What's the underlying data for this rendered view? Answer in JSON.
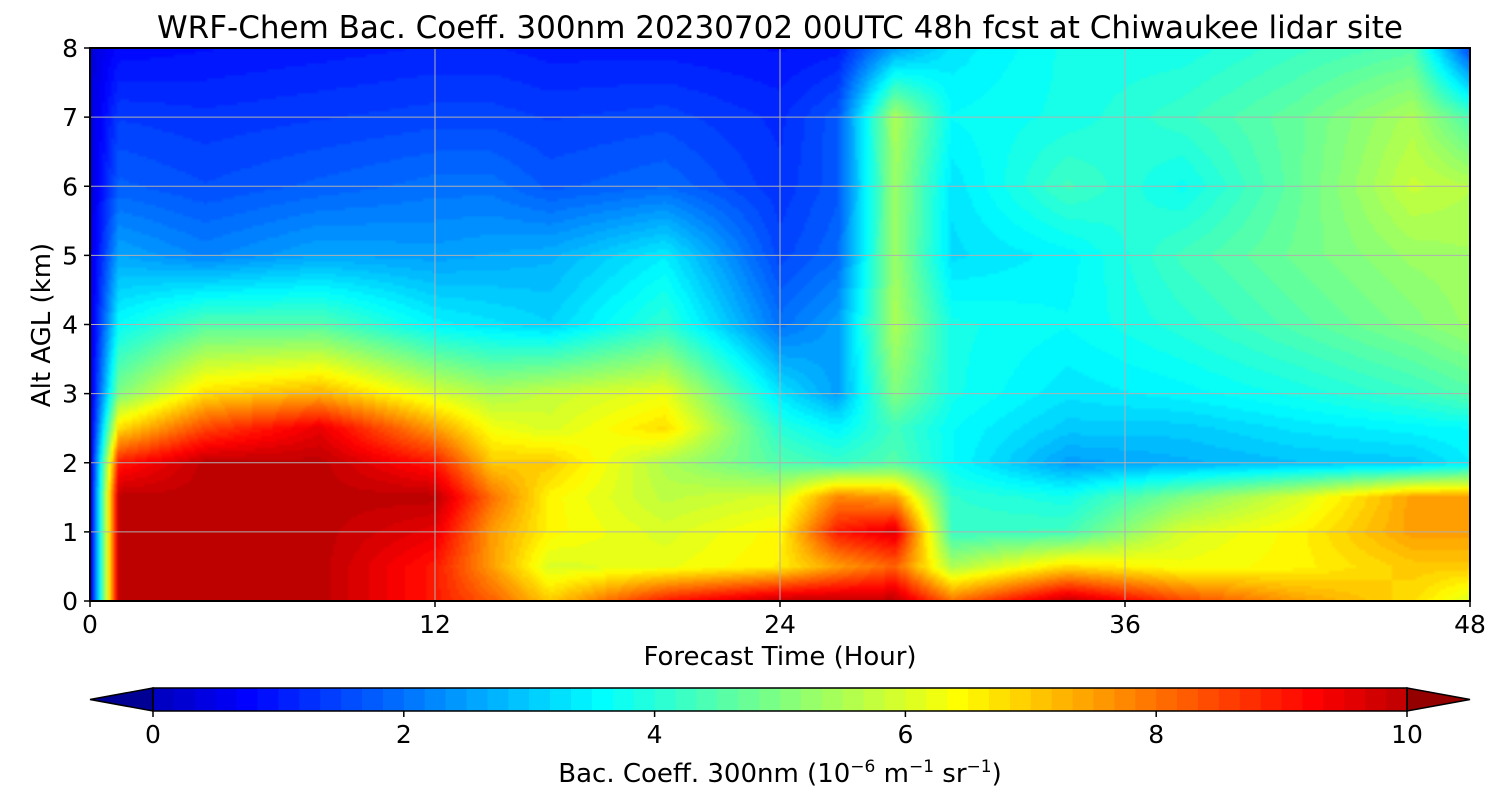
{
  "chart_data": {
    "type": "heatmap",
    "title": "WRF-Chem Bac. Coeff. 300nm  20230702 00UTC 48h fcst at Chiwaukee lidar site",
    "xlabel": "Forecast Time (Hour)",
    "ylabel": "Alt AGL (km)",
    "xlim": [
      0,
      48
    ],
    "ylim": [
      0,
      8
    ],
    "x_ticks": [
      0,
      12,
      24,
      36,
      48
    ],
    "y_ticks": [
      0,
      1,
      2,
      3,
      4,
      5,
      6,
      7,
      8
    ],
    "grid": true,
    "colormap": "jet",
    "colorbar": {
      "orientation": "horizontal",
      "placement": "bottom",
      "range": [
        0,
        10
      ],
      "ticks": [
        0,
        2,
        4,
        6,
        8,
        10
      ],
      "label": "Bac. Coeff. 300nm  (10",
      "label_exp1": "−6",
      "label_mid": " m",
      "label_exp2": "−1",
      "label_mid2": " sr",
      "label_exp3": "−1",
      "label_end": ")",
      "extend": "both"
    },
    "x": [
      0,
      1,
      4,
      8,
      12,
      14,
      16,
      20,
      24,
      26,
      28,
      30,
      34,
      38,
      42,
      46,
      48
    ],
    "y": [
      0,
      0.5,
      1,
      1.5,
      2,
      2.5,
      3,
      4,
      5,
      6,
      7,
      8
    ],
    "z": [
      [
        0.3,
        10,
        10,
        10,
        9,
        8.2,
        7,
        9,
        10,
        10,
        10,
        8,
        10,
        8.5,
        7.5,
        6.8,
        6
      ],
      [
        0.3,
        10,
        10,
        10,
        9,
        7.5,
        6,
        6.2,
        6.6,
        7.5,
        8.2,
        5.5,
        6.8,
        6.3,
        6.5,
        7,
        7
      ],
      [
        0.3,
        10,
        10,
        10,
        9.5,
        7.5,
        6.5,
        6,
        6.5,
        9,
        9.6,
        4.2,
        4.3,
        6,
        6.5,
        7.5,
        7.5
      ],
      [
        0.3,
        10,
        10,
        10,
        10,
        8,
        6.5,
        5.7,
        6,
        7.8,
        7.5,
        4.1,
        3.8,
        5,
        6,
        7.5,
        7.5
      ],
      [
        0.3,
        9,
        10,
        10,
        9,
        7,
        7,
        5.5,
        4.5,
        4.2,
        4.5,
        3.6,
        2.5,
        2.7,
        2.9,
        3,
        3.4
      ],
      [
        0.3,
        6.8,
        8.5,
        9.5,
        7.5,
        6.3,
        6,
        6.8,
        4,
        3.5,
        4.3,
        3.6,
        3,
        3,
        3.3,
        3.5,
        3.6
      ],
      [
        0.3,
        5,
        6.8,
        7.3,
        6,
        5.5,
        5.8,
        6.2,
        3.3,
        2.5,
        5,
        3.8,
        3.3,
        3.5,
        3.8,
        4.2,
        4.5
      ],
      [
        0.3,
        3.6,
        4.5,
        4.5,
        3.5,
        3.3,
        3.1,
        4.1,
        2,
        2.5,
        5.5,
        3.8,
        3.6,
        4,
        4.5,
        5,
        5.3
      ],
      [
        0.3,
        2.6,
        2.2,
        2.6,
        2.5,
        2.6,
        2.7,
        3.4,
        1.5,
        1.9,
        5.3,
        3.2,
        3.5,
        4.3,
        4.8,
        5.3,
        5.4
      ],
      [
        0.3,
        1.8,
        1.6,
        1.8,
        2,
        2,
        1.7,
        1.9,
        1.3,
        1.7,
        5.3,
        3.3,
        4.3,
        3.7,
        4.7,
        5.8,
        5.6
      ],
      [
        0.3,
        1.4,
        1.3,
        1.4,
        1.5,
        1.5,
        1.4,
        1.5,
        1.2,
        1.7,
        5.5,
        3.6,
        3.8,
        4.2,
        4.7,
        5.5,
        4.4
      ],
      [
        0.3,
        0.8,
        0.9,
        1,
        1.1,
        1.1,
        1,
        1,
        0.9,
        1,
        2.5,
        3.3,
        3.8,
        3.8,
        4.2,
        4.5,
        1.5
      ]
    ]
  }
}
